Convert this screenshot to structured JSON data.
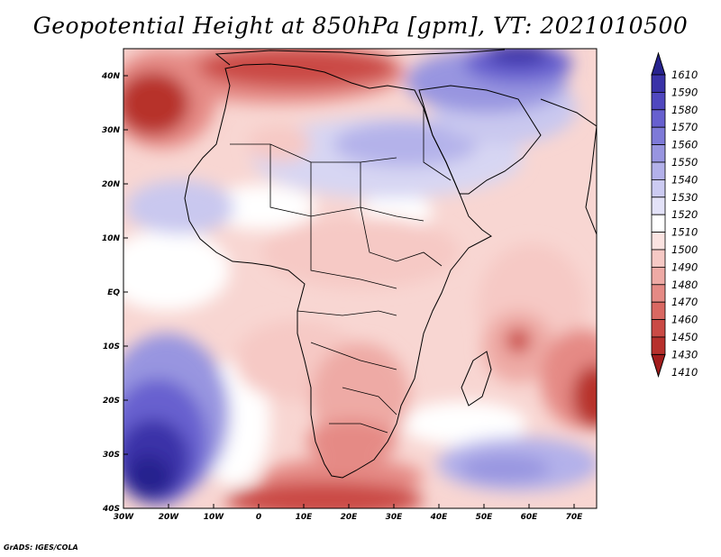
{
  "title": "Geopotential Height at 850hPa [gpm], VT: 2021010500",
  "credit": "GrADS: IGES/COLA",
  "map": {
    "variable": "Geopotential Height",
    "level": "850hPa",
    "units": "gpm",
    "valid_time": "2021010500",
    "lon_range": [
      -30,
      75
    ],
    "lat_range": [
      -40,
      45
    ],
    "lat_labels": [
      "40N",
      "30N",
      "20N",
      "10N",
      "EQ",
      "10S",
      "20S",
      "30S",
      "40S"
    ],
    "lat_values": [
      40,
      30,
      20,
      10,
      0,
      -10,
      -20,
      -30,
      -40
    ],
    "lon_labels": [
      "30W",
      "20W",
      "10W",
      "0",
      "10E",
      "20E",
      "30E",
      "40E",
      "50E",
      "60E",
      "70E"
    ],
    "lon_values": [
      -30,
      -20,
      -10,
      0,
      10,
      20,
      30,
      40,
      50,
      60,
      70
    ]
  },
  "colorbar": {
    "levels": [
      "1610",
      "1590",
      "1580",
      "1570",
      "1560",
      "1550",
      "1540",
      "1530",
      "1520",
      "1510",
      "1500",
      "1490",
      "1480",
      "1470",
      "1460",
      "1450",
      "1430",
      "1410"
    ],
    "colors": [
      "#27238e",
      "#3a33a8",
      "#5048bf",
      "#6760cf",
      "#7e7ad8",
      "#9895e0",
      "#b3b1ea",
      "#cccbf2",
      "#e3e2f8",
      "#ffffff",
      "#fbe3e1",
      "#f6c9c5",
      "#eeaaa5",
      "#e58a85",
      "#d96862",
      "#ca4a45",
      "#b7302c",
      "#a21c1c"
    ]
  }
}
